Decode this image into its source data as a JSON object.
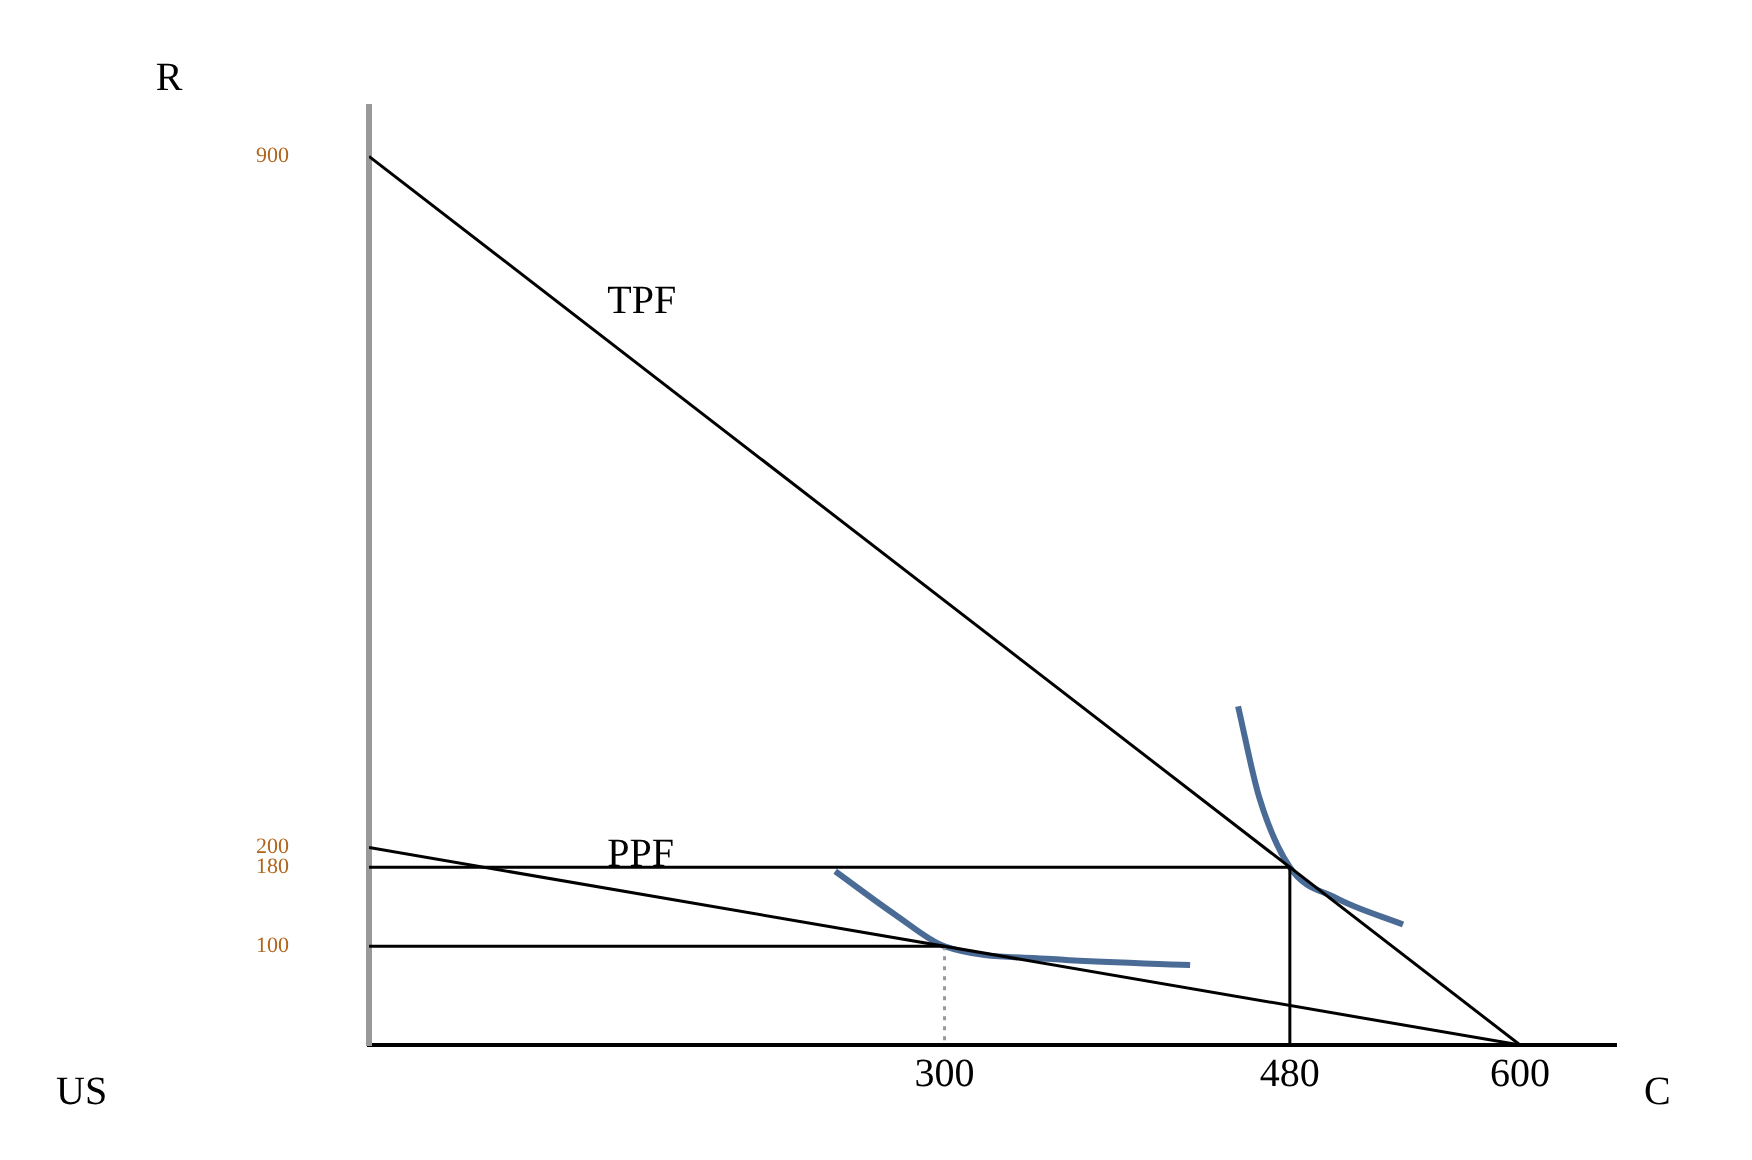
{
  "chart_data": {
    "type": "line",
    "xlabel": "C",
    "ylabel": "R",
    "annotations": [
      "US"
    ],
    "xlim": [
      0,
      650
    ],
    "ylim": [
      0,
      950
    ],
    "xticks": [
      300,
      480,
      600
    ],
    "yticks": [
      100,
      180,
      200,
      900
    ],
    "grid": false,
    "legend": false,
    "marker": "none",
    "series": [
      {
        "name": "TPF",
        "color": "#000000",
        "x": [
          0,
          600
        ],
        "values": [
          900,
          0
        ]
      },
      {
        "name": "PPF",
        "color": "#000000",
        "x": [
          0,
          600
        ],
        "values": [
          200,
          0
        ]
      },
      {
        "color": "#000000",
        "x": [
          0,
          480,
          480
        ],
        "values": [
          180,
          180,
          0
        ]
      },
      {
        "color": "#000000",
        "x": [
          0,
          300
        ],
        "values": [
          100,
          100
        ]
      },
      {
        "color": "#999999",
        "x": [
          300,
          300
        ],
        "values": [
          100,
          0
        ],
        "line_style": "dotted"
      },
      {
        "color": "#4a6b96",
        "x": [
          453,
          464,
          480,
          504,
          539
        ],
        "values": [
          343,
          251,
          180,
          149,
          122
        ]
      },
      {
        "color": "#4a6b96",
        "x": [
          243,
          275,
          300,
          356,
          428
        ],
        "values": [
          176,
          131,
          100,
          87,
          81
        ]
      }
    ]
  }
}
